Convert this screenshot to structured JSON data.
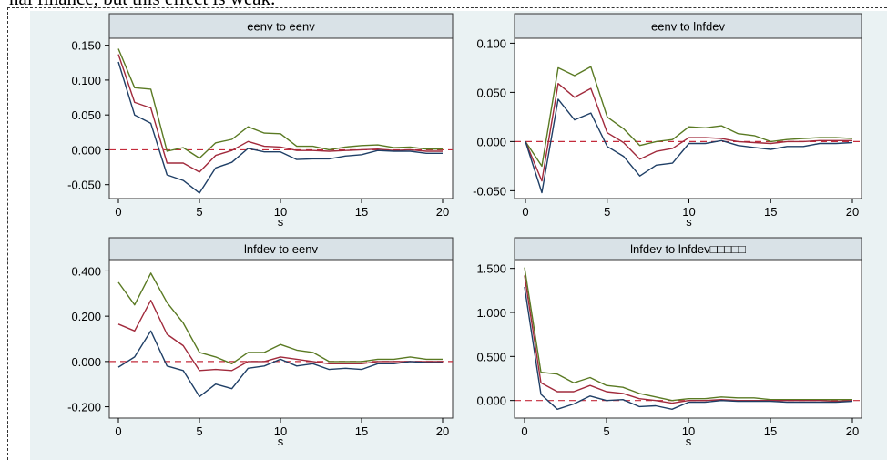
{
  "caption_fragment": "nal finance, but this effect is weak.",
  "colors": {
    "upper": "#5a7a23",
    "mid": "#a12a3c",
    "lower": "#1f3f66",
    "zero": "#c42b3b",
    "panel_bg": "#eaf2f3",
    "title_bg": "#d9e2e7"
  },
  "chart_data": [
    {
      "type": "line",
      "title": "eenv to eenv",
      "xlabel": "s",
      "x": [
        0,
        1,
        2,
        3,
        4,
        5,
        6,
        7,
        8,
        9,
        10,
        11,
        12,
        13,
        14,
        15,
        16,
        17,
        18,
        19,
        20
      ],
      "xticks": [
        0,
        5,
        10,
        15,
        20
      ],
      "xtick_labels": [
        "0",
        "5",
        "10",
        "15",
        "20"
      ],
      "ylim": [
        -0.07,
        0.16
      ],
      "yticks": [
        -0.05,
        0,
        0.05,
        0.1,
        0.15
      ],
      "ytick_labels": [
        "-0.050",
        "0.000",
        "0.050",
        "0.100",
        "0.150"
      ],
      "series": [
        {
          "role": "upper",
          "values": [
            0.145,
            0.089,
            0.087,
            -0.002,
            0.003,
            -0.012,
            0.01,
            0.015,
            0.033,
            0.024,
            0.023,
            0.005,
            0.005,
            0.0,
            0.004,
            0.006,
            0.007,
            0.003,
            0.004,
            0.001,
            0.001
          ]
        },
        {
          "role": "mid",
          "values": [
            0.137,
            0.068,
            0.06,
            -0.019,
            -0.019,
            -0.032,
            -0.008,
            -0.001,
            0.012,
            0.005,
            0.004,
            -0.001,
            -0.001,
            -0.002,
            -0.001,
            0.0,
            0.001,
            -0.001,
            0.0,
            -0.002,
            -0.002
          ]
        },
        {
          "role": "lower",
          "values": [
            0.126,
            0.05,
            0.038,
            -0.036,
            -0.044,
            -0.062,
            -0.026,
            -0.018,
            0.002,
            -0.003,
            -0.003,
            -0.014,
            -0.013,
            -0.013,
            -0.009,
            -0.007,
            -0.001,
            -0.002,
            -0.002,
            -0.005,
            -0.005
          ]
        }
      ]
    },
    {
      "type": "line",
      "title": "eenv to lnfdev",
      "xlabel": "s",
      "x": [
        0,
        1,
        2,
        3,
        4,
        5,
        6,
        7,
        8,
        9,
        10,
        11,
        12,
        13,
        14,
        15,
        16,
        17,
        18,
        19,
        20
      ],
      "xticks": [
        0,
        5,
        10,
        15,
        20
      ],
      "xtick_labels": [
        "0",
        "5",
        "10",
        "15",
        "20"
      ],
      "ylim": [
        -0.058,
        0.105
      ],
      "yticks": [
        -0.05,
        0,
        0.05,
        0.1
      ],
      "ytick_labels": [
        "-0.050",
        "0.000",
        "0.050",
        "0.100"
      ],
      "series": [
        {
          "role": "upper",
          "values": [
            0.0,
            -0.025,
            0.075,
            0.067,
            0.076,
            0.025,
            0.013,
            -0.004,
            0.0,
            0.002,
            0.015,
            0.014,
            0.016,
            0.008,
            0.006,
            0.0,
            0.002,
            0.003,
            0.004,
            0.004,
            0.003
          ]
        },
        {
          "role": "mid",
          "values": [
            0.0,
            -0.04,
            0.059,
            0.045,
            0.054,
            0.009,
            -0.001,
            -0.018,
            -0.01,
            -0.007,
            0.004,
            0.004,
            0.003,
            0.0,
            -0.001,
            -0.002,
            0.0,
            0.0,
            0.001,
            0.001,
            0.001
          ]
        },
        {
          "role": "lower",
          "values": [
            0.0,
            -0.052,
            0.043,
            0.022,
            0.029,
            -0.005,
            -0.015,
            -0.035,
            -0.024,
            -0.022,
            -0.002,
            -0.002,
            0.001,
            -0.004,
            -0.006,
            -0.008,
            -0.005,
            -0.005,
            -0.002,
            -0.002,
            -0.001
          ]
        }
      ]
    },
    {
      "type": "line",
      "title": "lnfdev to eenv",
      "xlabel": "s",
      "x": [
        0,
        1,
        2,
        3,
        4,
        5,
        6,
        7,
        8,
        9,
        10,
        11,
        12,
        13,
        14,
        15,
        16,
        17,
        18,
        19,
        20
      ],
      "xticks": [
        0,
        5,
        10,
        15,
        20
      ],
      "xtick_labels": [
        "0",
        "5",
        "10",
        "15",
        "20"
      ],
      "ylim": [
        -0.25,
        0.45
      ],
      "yticks": [
        -0.2,
        0,
        0.2,
        0.4
      ],
      "ytick_labels": [
        "-0.200",
        "0.000",
        "0.200",
        "0.400"
      ],
      "series": [
        {
          "role": "upper",
          "values": [
            0.35,
            0.25,
            0.39,
            0.26,
            0.17,
            0.04,
            0.02,
            -0.01,
            0.04,
            0.04,
            0.075,
            0.05,
            0.04,
            0.0,
            0.0,
            0.0,
            0.01,
            0.01,
            0.02,
            0.01,
            0.01
          ]
        },
        {
          "role": "mid",
          "values": [
            0.165,
            0.135,
            0.27,
            0.12,
            0.07,
            -0.04,
            -0.035,
            -0.04,
            0.0,
            0.0,
            0.02,
            0.01,
            0.0,
            -0.01,
            -0.01,
            -0.01,
            0.0,
            0.0,
            0.0,
            0.0,
            0.0
          ]
        },
        {
          "role": "lower",
          "values": [
            -0.025,
            0.02,
            0.135,
            -0.02,
            -0.04,
            -0.155,
            -0.1,
            -0.12,
            -0.03,
            -0.02,
            0.01,
            -0.02,
            -0.01,
            -0.035,
            -0.03,
            -0.035,
            -0.01,
            -0.01,
            0.0,
            -0.005,
            -0.005
          ]
        }
      ]
    },
    {
      "type": "line",
      "title": "lnfdev to lnfdev□□□□□",
      "xlabel": "s",
      "x": [
        0,
        1,
        2,
        3,
        4,
        5,
        6,
        7,
        8,
        9,
        10,
        11,
        12,
        13,
        14,
        15,
        16,
        17,
        18,
        19,
        20
      ],
      "xticks": [
        0,
        5,
        10,
        15,
        20
      ],
      "xtick_labels": [
        "0",
        "5",
        "10",
        "15",
        "20"
      ],
      "ylim": [
        -0.2,
        1.6
      ],
      "yticks": [
        0,
        0.5,
        1,
        1.5
      ],
      "ytick_labels": [
        "0.000",
        "0.500",
        "1.000",
        "1.500"
      ],
      "series": [
        {
          "role": "upper",
          "values": [
            1.51,
            0.32,
            0.3,
            0.2,
            0.26,
            0.17,
            0.15,
            0.08,
            0.04,
            0.0,
            0.02,
            0.02,
            0.04,
            0.03,
            0.03,
            0.01,
            0.01,
            0.01,
            0.01,
            0.01,
            0.01
          ]
        },
        {
          "role": "mid",
          "values": [
            1.42,
            0.2,
            0.1,
            0.1,
            0.17,
            0.1,
            0.08,
            0.02,
            0.0,
            -0.03,
            0.0,
            0.0,
            0.01,
            0.0,
            0.0,
            0.0,
            0.0,
            0.0,
            0.0,
            -0.01,
            0.0
          ]
        },
        {
          "role": "lower",
          "values": [
            1.29,
            0.07,
            -0.1,
            -0.04,
            0.05,
            0.0,
            0.01,
            -0.07,
            -0.06,
            -0.1,
            -0.02,
            -0.02,
            0.0,
            -0.01,
            -0.01,
            -0.01,
            -0.02,
            -0.02,
            -0.02,
            -0.02,
            -0.01
          ]
        }
      ]
    }
  ]
}
